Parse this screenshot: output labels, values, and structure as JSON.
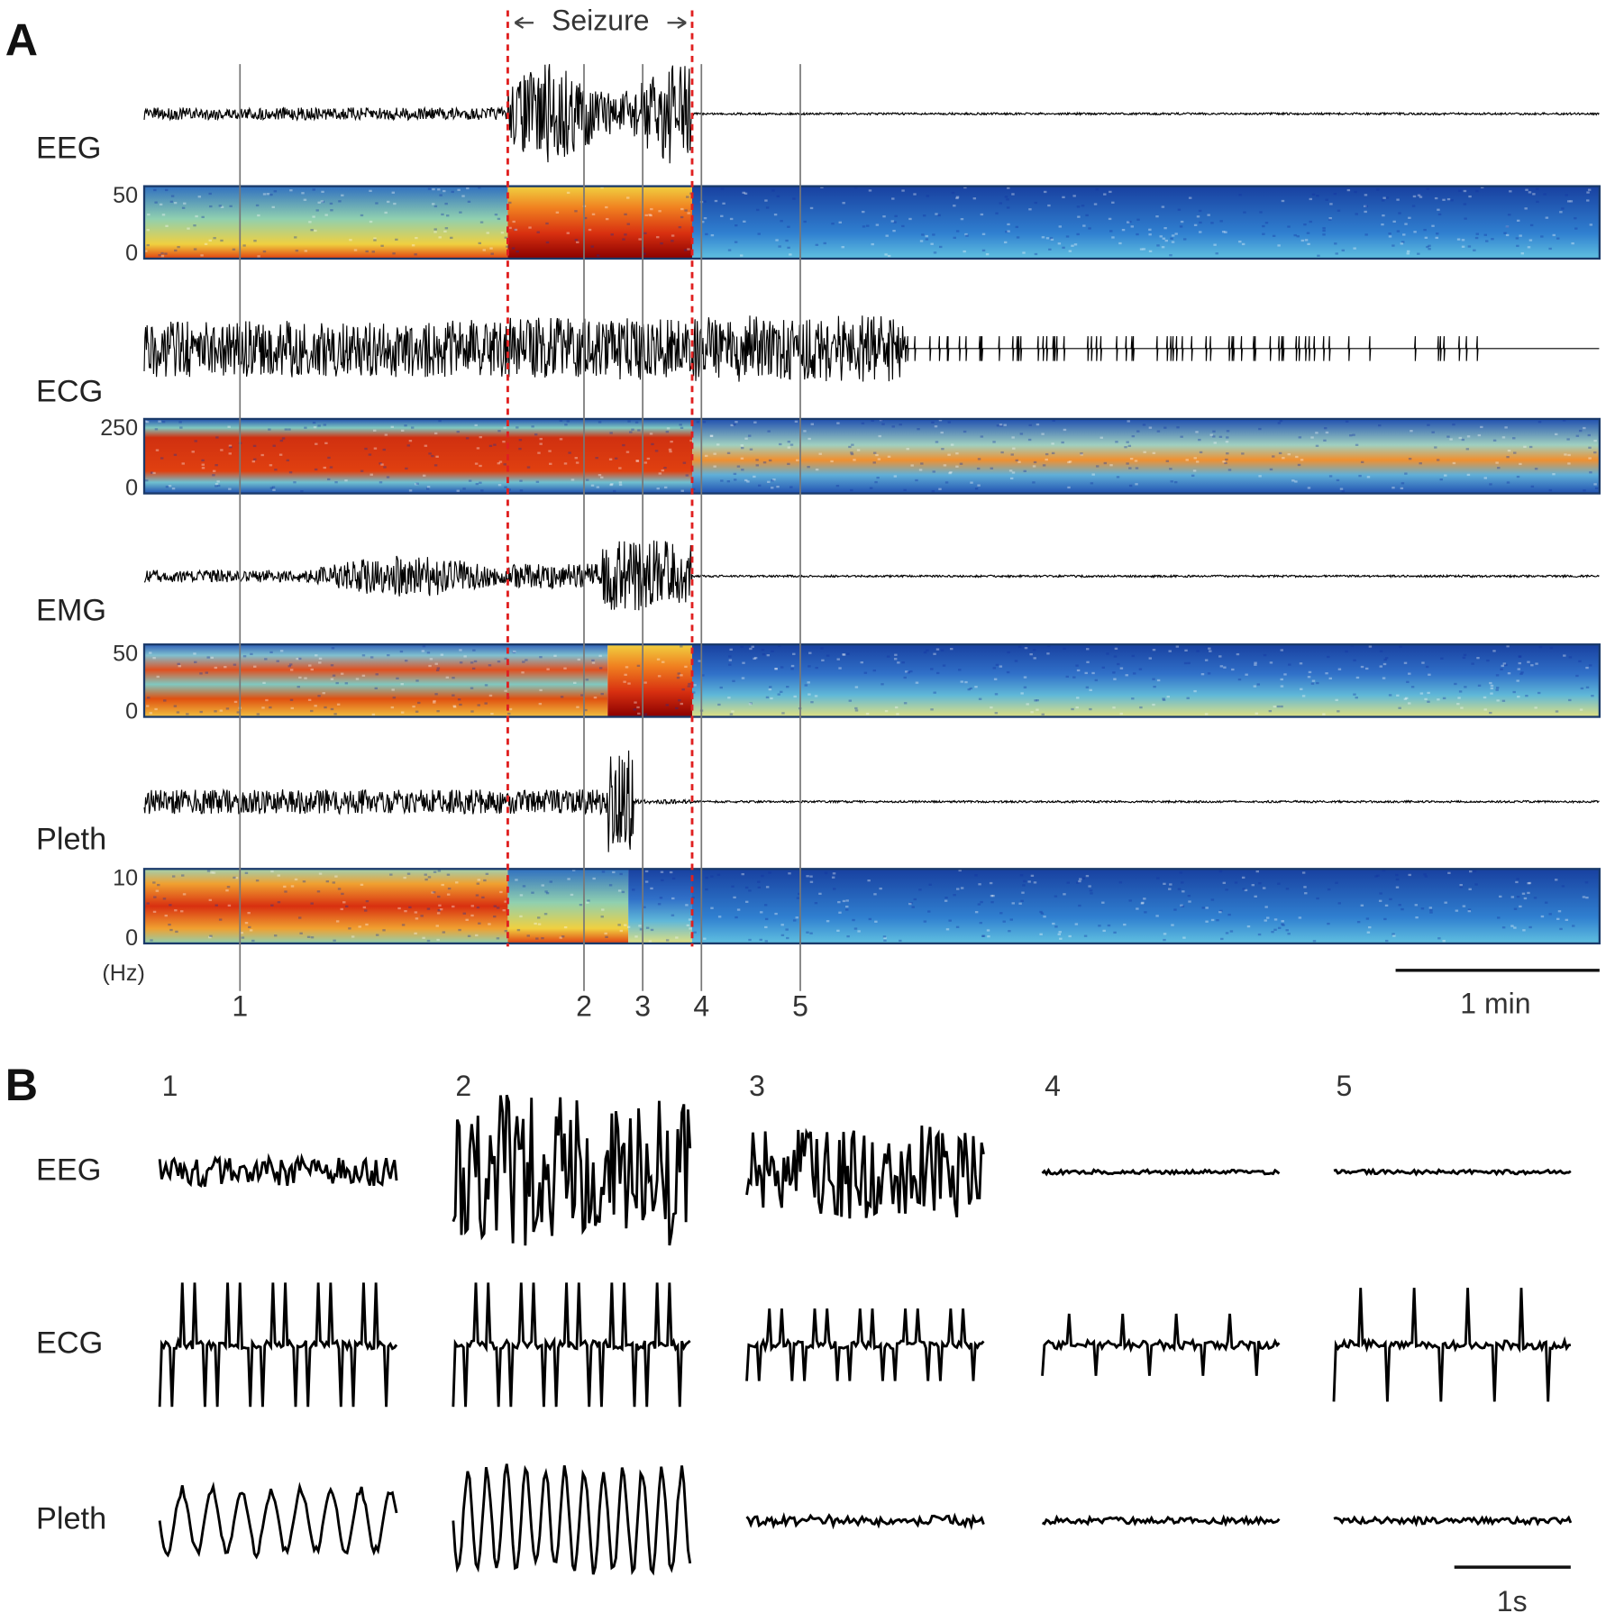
{
  "panel_a": {
    "label": "A",
    "seizure_label": "Seizure",
    "channels": [
      {
        "name": "EEG",
        "ticks": [
          "50",
          "0"
        ]
      },
      {
        "name": "ECG",
        "ticks": [
          "250",
          "0"
        ]
      },
      {
        "name": "EMG",
        "ticks": [
          "50",
          "0"
        ]
      },
      {
        "name": "Pleth",
        "ticks": [
          "10",
          "0"
        ]
      }
    ],
    "unit_label": "(Hz)",
    "markers": [
      "1",
      "2",
      "3",
      "4",
      "5"
    ],
    "scale_bar": "1 min"
  },
  "panel_b": {
    "label": "B",
    "columns": [
      "1",
      "2",
      "3",
      "4",
      "5"
    ],
    "rows": [
      "EEG",
      "ECG",
      "Pleth"
    ],
    "scale_bar": "1s"
  }
}
